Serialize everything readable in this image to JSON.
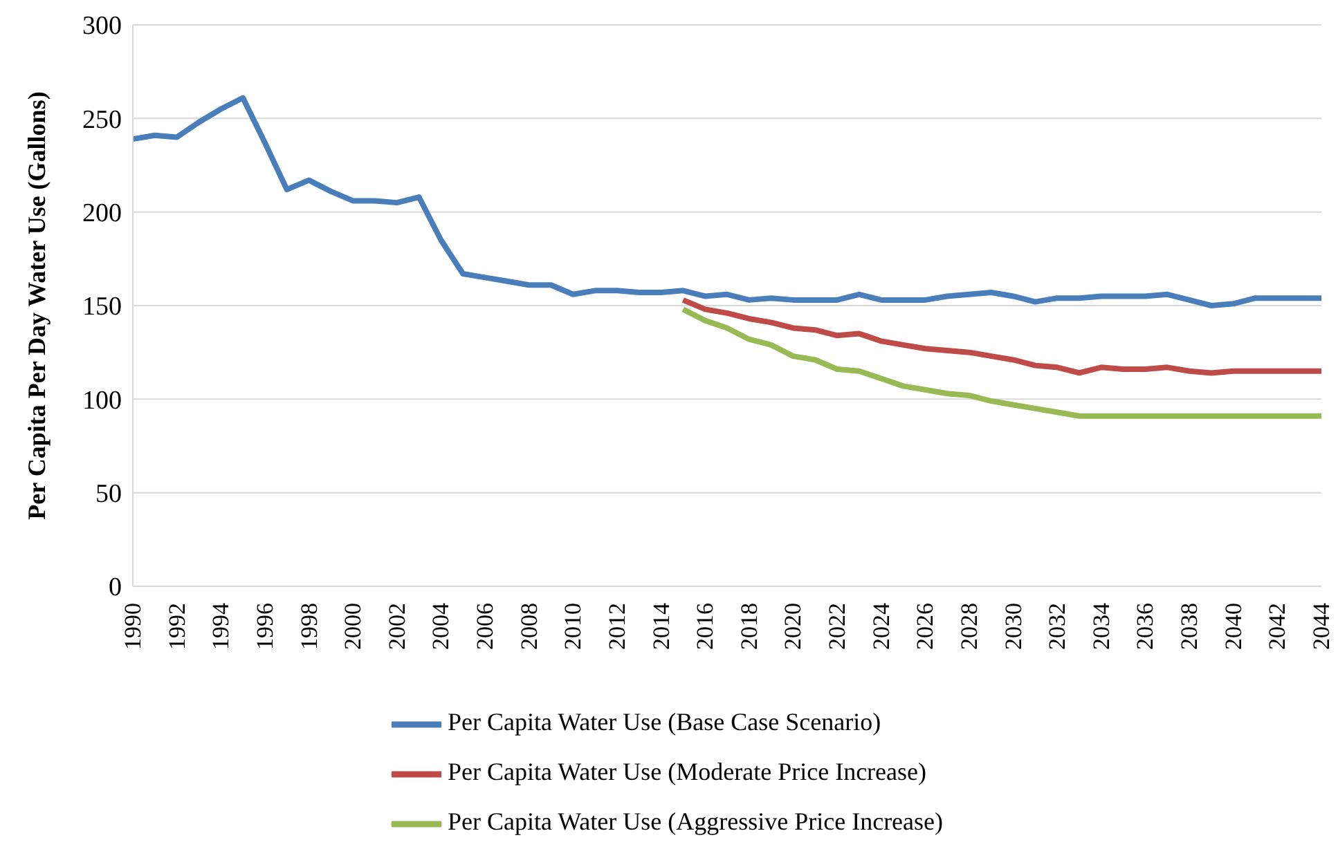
{
  "chart_data": {
    "type": "line",
    "ylabel": "Per Capita Per Day Water Use (Gallons)",
    "categories": [
      "1990",
      null,
      "1992",
      null,
      "1994",
      null,
      "1996",
      null,
      "1998",
      null,
      "2000",
      null,
      "2002",
      null,
      "2004",
      null,
      "2006",
      null,
      "2008",
      null,
      "2010",
      null,
      "2012",
      null,
      "2014",
      null,
      "2016",
      null,
      "2018",
      null,
      "2020",
      null,
      "2022",
      null,
      "2024",
      null,
      "2026",
      null,
      "2028",
      null,
      "2030",
      null,
      "2032",
      null,
      "2034",
      null,
      "2036",
      null,
      "2038",
      null,
      "2040",
      null,
      "2042",
      null,
      "2044"
    ],
    "series": [
      {
        "name": "Per Capita Water Use (Base Case Scenario)",
        "color": "#4a7ebb",
        "values": [
          239,
          241,
          240,
          248,
          255,
          261,
          237,
          212,
          217,
          211,
          206,
          206,
          205,
          208,
          185,
          167,
          165,
          163,
          161,
          161,
          156,
          158,
          158,
          157,
          157,
          158,
          155,
          156,
          153,
          154,
          153,
          153,
          153,
          156,
          153,
          153,
          153,
          155,
          156,
          157,
          155,
          152,
          154,
          154,
          155,
          155,
          155,
          156,
          153,
          150,
          151,
          154,
          154,
          154,
          154
        ]
      },
      {
        "name": "Per Capita Water Use (Moderate Price Increase)",
        "color": "#be4b48",
        "values": [
          null,
          null,
          null,
          null,
          null,
          null,
          null,
          null,
          null,
          null,
          null,
          null,
          null,
          null,
          null,
          null,
          null,
          null,
          null,
          null,
          null,
          null,
          null,
          null,
          null,
          153,
          148,
          146,
          143,
          141,
          138,
          137,
          134,
          135,
          131,
          129,
          127,
          126,
          125,
          123,
          121,
          118,
          117,
          114,
          117,
          116,
          116,
          117,
          115,
          114,
          115,
          115,
          115,
          115,
          115
        ]
      },
      {
        "name": "Per Capita Water Use (Aggressive Price Increase)",
        "color": "#98b954",
        "values": [
          null,
          null,
          null,
          null,
          null,
          null,
          null,
          null,
          null,
          null,
          null,
          null,
          null,
          null,
          null,
          null,
          null,
          null,
          null,
          null,
          null,
          null,
          null,
          null,
          null,
          148,
          142,
          138,
          132,
          129,
          123,
          121,
          116,
          115,
          111,
          107,
          105,
          103,
          102,
          99,
          97,
          95,
          93,
          91,
          91,
          91,
          91,
          91,
          91,
          91,
          91,
          91,
          91,
          91,
          91
        ]
      }
    ],
    "ylim": [
      0,
      300
    ],
    "yticks": [
      0,
      50,
      100,
      150,
      200,
      250,
      300
    ],
    "grid": "y",
    "legend": "bottom",
    "marker": "none",
    "line_style": "solid"
  }
}
